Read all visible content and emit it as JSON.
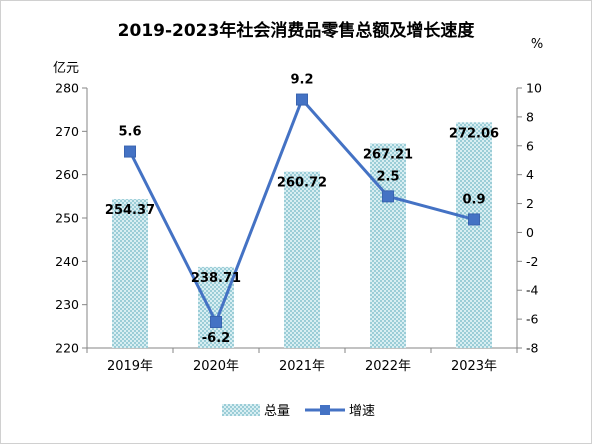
{
  "chart_data": {
    "type": "bar",
    "title": "2019-2023年社会消费品零售总额及增长速度",
    "categories": [
      "2019年",
      "2020年",
      "2021年",
      "2022年",
      "2023年"
    ],
    "left_axis": {
      "unit": "亿元",
      "ylim": [
        220,
        280
      ],
      "ticks": [
        220,
        230,
        240,
        250,
        260,
        270,
        280
      ]
    },
    "right_axis": {
      "unit": "%",
      "ylim": [
        -8,
        10
      ],
      "ticks": [
        -8,
        -6,
        -4,
        -2,
        0,
        2,
        4,
        6,
        8,
        10
      ]
    },
    "series": [
      {
        "name": "总量",
        "type": "bar",
        "axis": "left",
        "values": [
          254.37,
          238.71,
          260.72,
          267.21,
          272.06
        ],
        "color": "#b9dfe6"
      },
      {
        "name": "增速",
        "type": "line",
        "axis": "right",
        "values": [
          5.6,
          -6.2,
          9.2,
          2.5,
          0.9
        ],
        "color": "#4472c4"
      }
    ],
    "bar_labels": [
      "254.37",
      "238.71",
      "260.72",
      "267.21",
      "272.06"
    ],
    "line_labels": [
      "5.6",
      "-6.2",
      "9.2",
      "2.5",
      "0.9"
    ],
    "grid": false,
    "legend": "bottom"
  }
}
